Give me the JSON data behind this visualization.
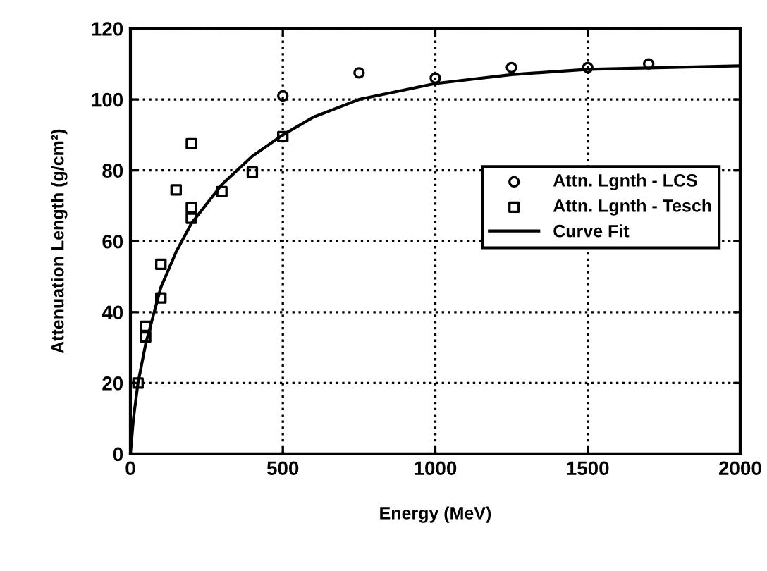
{
  "chart_data": {
    "type": "scatter",
    "xlabel": "Energy (MeV)",
    "ylabel": "Attenuation Length (g/cm²)",
    "xlim": [
      0,
      2000
    ],
    "ylim": [
      0,
      120
    ],
    "xticks": [
      0,
      500,
      1000,
      1500,
      2000
    ],
    "yticks": [
      0,
      20,
      40,
      60,
      80,
      100,
      120
    ],
    "grid": true,
    "legend": "right",
    "series": [
      {
        "name": "Attn. Lgnth - LCS",
        "marker": "circle",
        "color": "#000000",
        "x": [
          500,
          750,
          1000,
          1250,
          1500,
          1700
        ],
        "values": [
          101,
          107.5,
          106,
          109,
          109,
          110
        ]
      },
      {
        "name": "Attn. Lgnth - Tesch",
        "marker": "square",
        "color": "#000000",
        "x": [
          25,
          50,
          50,
          100,
          100,
          150,
          200,
          200,
          200,
          300,
          400,
          500
        ],
        "values": [
          20,
          36,
          33,
          53.5,
          44,
          74.5,
          87.5,
          69.5,
          66.5,
          74,
          79.5,
          89.5
        ]
      },
      {
        "name": "Curve Fit",
        "type": "line",
        "marker": "none",
        "line_style": "solid",
        "color": "#000000",
        "x": [
          0,
          10,
          25,
          50,
          100,
          150,
          200,
          300,
          400,
          500,
          600,
          750,
          1000,
          1250,
          1500,
          2000
        ],
        "values": [
          0,
          10,
          20,
          31,
          47,
          57,
          65,
          76,
          84,
          90,
          95,
          100,
          104.5,
          107,
          108.5,
          109.5
        ]
      }
    ]
  }
}
